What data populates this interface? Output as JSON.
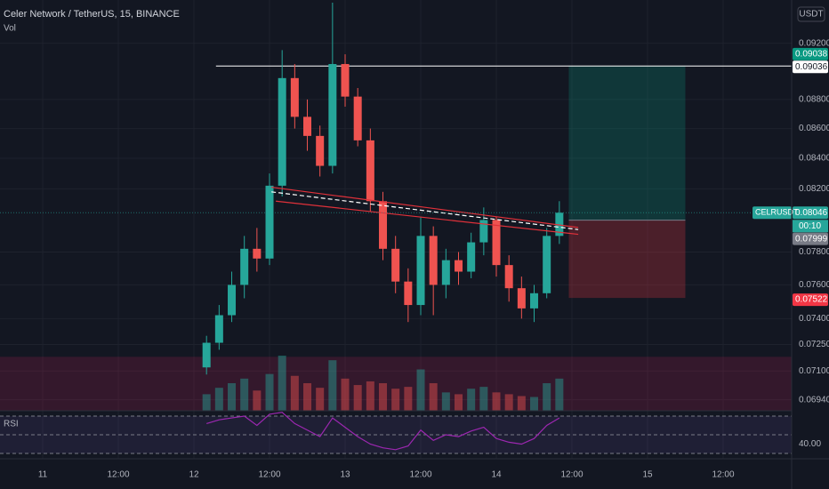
{
  "chart_data": {
    "type": "candlestick",
    "title": "Celer Network / TetherUS, 15, BINANCE",
    "volume_label": "Vol",
    "rsi_label": "RSI",
    "currency": "USDT",
    "symbol": "CELRUSDT",
    "countdown": "00:10",
    "log_scale": true,
    "grid": true,
    "up_color": "#26a69a",
    "down_color": "#ef5350",
    "xlim": [
      -6.78,
      118.87
    ],
    "ylim": [
      0.0688,
      0.0952
    ],
    "xticks": [
      {
        "value": 0,
        "label": "11"
      },
      {
        "value": 12,
        "label": "12:00"
      },
      {
        "value": 24,
        "label": "12"
      },
      {
        "value": 36,
        "label": "12:00"
      },
      {
        "value": 48,
        "label": "13"
      },
      {
        "value": 60,
        "label": "12:00"
      },
      {
        "value": 72,
        "label": "14"
      },
      {
        "value": 84,
        "label": "12:00"
      },
      {
        "value": 96,
        "label": "15"
      },
      {
        "value": 108,
        "label": "12:00"
      }
    ],
    "yticks": [
      {
        "value": 0.092,
        "label": "0.09200"
      },
      {
        "value": 0.088,
        "label": "0.08800"
      },
      {
        "value": 0.086,
        "label": "0.08600"
      },
      {
        "value": 0.084,
        "label": "0.08400"
      },
      {
        "value": 0.082,
        "label": "0.08200"
      },
      {
        "value": 0.078,
        "label": "0.07800"
      },
      {
        "value": 0.076,
        "label": "0.07600"
      },
      {
        "value": 0.074,
        "label": "0.07400"
      },
      {
        "value": 0.0725,
        "label": "0.07250"
      },
      {
        "value": 0.071,
        "label": "0.07100"
      },
      {
        "value": 0.0694,
        "label": "0.06940"
      }
    ],
    "x": [
      26,
      28,
      30,
      32,
      34,
      36,
      38,
      40,
      42,
      44,
      46,
      48,
      50,
      52,
      54,
      56,
      58,
      60,
      62,
      64,
      66,
      68,
      70,
      72,
      74,
      76,
      78,
      80,
      82
    ],
    "open": [
      0.0712,
      0.0726,
      0.0742,
      0.076,
      0.0782,
      0.0776,
      0.0822,
      0.0895,
      0.0868,
      0.0855,
      0.0835,
      0.0905,
      0.0882,
      0.0852,
      0.0812,
      0.0782,
      0.0762,
      0.0748,
      0.079,
      0.076,
      0.0775,
      0.0768,
      0.0786,
      0.08,
      0.0772,
      0.0758,
      0.0746,
      0.0755,
      0.079
    ],
    "high": [
      0.073,
      0.0748,
      0.0768,
      0.079,
      0.0795,
      0.083,
      0.0915,
      0.0905,
      0.088,
      0.0862,
      0.095,
      0.0912,
      0.0888,
      0.086,
      0.0818,
      0.079,
      0.077,
      0.0802,
      0.0796,
      0.0782,
      0.078,
      0.0792,
      0.0808,
      0.0802,
      0.0778,
      0.0765,
      0.076,
      0.0795,
      0.0812
    ],
    "low": [
      0.0708,
      0.0722,
      0.0738,
      0.0752,
      0.0768,
      0.0772,
      0.0815,
      0.086,
      0.0845,
      0.0828,
      0.083,
      0.0875,
      0.0848,
      0.0805,
      0.0775,
      0.0755,
      0.0738,
      0.0742,
      0.0742,
      0.0752,
      0.076,
      0.0764,
      0.0778,
      0.0765,
      0.075,
      0.074,
      0.0738,
      0.0752,
      0.0785
    ],
    "close": [
      0.0726,
      0.0742,
      0.076,
      0.0782,
      0.0776,
      0.0822,
      0.0895,
      0.0868,
      0.0855,
      0.0835,
      0.0905,
      0.0882,
      0.0852,
      0.0812,
      0.0782,
      0.0762,
      0.0748,
      0.079,
      0.076,
      0.0775,
      0.0768,
      0.0786,
      0.08,
      0.0772,
      0.0758,
      0.0746,
      0.0755,
      0.079,
      0.08046
    ],
    "volume": [
      18,
      25,
      30,
      35,
      22,
      40,
      60,
      38,
      30,
      25,
      55,
      35,
      28,
      32,
      30,
      24,
      26,
      45,
      30,
      20,
      18,
      24,
      26,
      20,
      18,
      16,
      15,
      30,
      35
    ],
    "rsi": [
      62,
      66,
      68,
      70,
      60,
      72,
      74,
      62,
      55,
      48,
      68,
      58,
      48,
      40,
      36,
      34,
      38,
      55,
      44,
      50,
      48,
      54,
      58,
      46,
      42,
      40,
      46,
      60,
      68
    ],
    "rsi_color": "#9c27b0",
    "rsi_ylim": [
      24.3,
      75.7
    ],
    "rsi_yticks": [
      {
        "value": 40,
        "label": "40.00"
      }
    ],
    "rsi_levels": [
      30,
      50,
      70
    ],
    "position": {
      "target": 0.09038,
      "entry": 0.07999,
      "stop": 0.07522,
      "x": [
        83.5,
        102
      ]
    },
    "hline": {
      "value": 0.09036,
      "x": 27.5
    },
    "zone_top": 0.0718,
    "trendlines": [
      {
        "x": [
          36.3,
          85
        ],
        "y": [
          0.0821,
          0.07953
        ],
        "color": "#e0313a",
        "dash": false
      },
      {
        "x": [
          37,
          85
        ],
        "y": [
          0.0812,
          0.0791
        ],
        "color": "#e0313a",
        "dash": false
      },
      {
        "x": [
          36.3,
          85
        ],
        "y": [
          0.0818,
          0.0794
        ],
        "color": "#ffffff",
        "dash": true
      }
    ]
  }
}
